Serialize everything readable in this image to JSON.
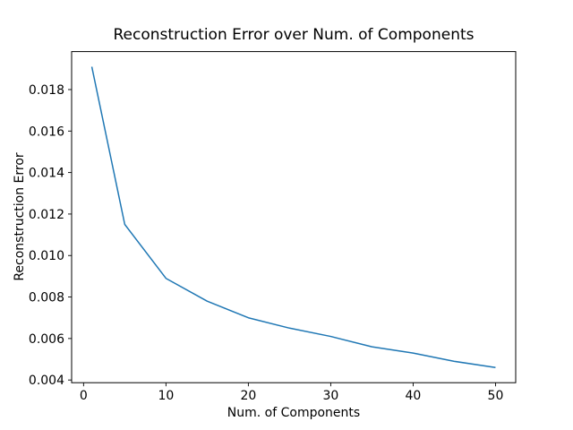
{
  "chart_data": {
    "type": "line",
    "title": "Reconstruction Error over Num. of Components",
    "xlabel": "Num. of Components",
    "ylabel": "Reconstruction Error",
    "x": [
      1,
      5,
      10,
      15,
      20,
      25,
      30,
      35,
      40,
      45,
      50
    ],
    "y": [
      0.0191,
      0.0115,
      0.0089,
      0.0078,
      0.007,
      0.0065,
      0.0061,
      0.0056,
      0.0053,
      0.0049,
      0.0046
    ],
    "xlim": [
      -1.45,
      52.45
    ],
    "ylim": [
      0.00387,
      0.01983
    ],
    "xticks": [
      0,
      10,
      20,
      30,
      40,
      50
    ],
    "xtick_labels": [
      "0",
      "10",
      "20",
      "30",
      "40",
      "50"
    ],
    "yticks": [
      0.004,
      0.006,
      0.008,
      0.01,
      0.012,
      0.014,
      0.016,
      0.018
    ],
    "ytick_labels": [
      "0.004",
      "0.006",
      "0.008",
      "0.010",
      "0.012",
      "0.014",
      "0.016",
      "0.018"
    ],
    "grid": false,
    "legend": "none",
    "markers": false,
    "line_color": "#1f77b4",
    "line_width": 1.5,
    "spine_color": "#000000",
    "text_color": "#000000",
    "background_color": "#ffffff"
  }
}
